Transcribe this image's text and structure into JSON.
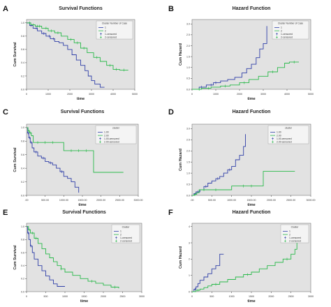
{
  "colors": {
    "series1": "#2f3fa8",
    "series2": "#29b94a",
    "plot_bg": "#e2e2e2",
    "axis": "#333333"
  },
  "chart_data": [
    {
      "panel": "A",
      "type": "line",
      "step": true,
      "title": "Survival Functions",
      "xlabel": "time",
      "ylabel": "Cum Survival",
      "xlim": [
        0,
        5000
      ],
      "ylim": [
        0,
        1.05
      ],
      "xticks": [
        0,
        1000,
        2000,
        3000,
        4000,
        5000
      ],
      "yticks": [
        0.0,
        0.2,
        0.4,
        0.6,
        0.8,
        1.0
      ],
      "xtick_labels": [
        "0",
        "1000",
        "2000",
        "3000",
        "4000",
        "5000"
      ],
      "ytick_labels": [
        "0.0",
        "0.2",
        "0.4",
        "0.6",
        "0.8",
        "1.0"
      ],
      "legend_title": "Cluster Number of Case",
      "legend": [
        "1",
        "2",
        "1-censored",
        "2-censored"
      ],
      "legend_position": "top-right",
      "series": [
        {
          "name": "1",
          "color": "#2f3fa8",
          "x": [
            0,
            150,
            300,
            500,
            700,
            900,
            1100,
            1300,
            1500,
            1700,
            1900,
            2100,
            2300,
            2500,
            2700,
            2850,
            3000,
            3150,
            3300,
            3400,
            3600
          ],
          "y": [
            1.0,
            0.96,
            0.92,
            0.88,
            0.84,
            0.8,
            0.76,
            0.72,
            0.7,
            0.66,
            0.6,
            0.52,
            0.44,
            0.36,
            0.28,
            0.2,
            0.13,
            0.08,
            0.08,
            0.03,
            0.03
          ],
          "censor_x": [
            200,
            450,
            800,
            1050,
            1250
          ]
        },
        {
          "name": "2",
          "color": "#29b94a",
          "x": [
            0,
            200,
            400,
            700,
            1000,
            1300,
            1600,
            1900,
            2200,
            2500,
            2800,
            3100,
            3400,
            3700,
            4000,
            4300,
            4700
          ],
          "y": [
            1.0,
            0.97,
            0.95,
            0.92,
            0.88,
            0.85,
            0.8,
            0.75,
            0.7,
            0.62,
            0.55,
            0.48,
            0.42,
            0.36,
            0.3,
            0.29,
            0.29
          ],
          "censor_x": [
            150,
            300,
            500,
            600,
            900,
            1150,
            1450,
            2050,
            2350,
            2650,
            3250,
            3850,
            4150,
            4500
          ]
        }
      ]
    },
    {
      "panel": "B",
      "type": "line",
      "step": true,
      "title": "Hazard Function",
      "xlabel": "time",
      "ylabel": "Cum Hazard",
      "xlim": [
        0,
        5000
      ],
      "ylim": [
        0,
        3.2
      ],
      "xticks": [
        0,
        1000,
        2000,
        3000,
        4000,
        5000
      ],
      "yticks": [
        0.0,
        0.5,
        1.0,
        1.5,
        2.0,
        2.5,
        3.0
      ],
      "xtick_labels": [
        "0",
        "1000",
        "2000",
        "3000",
        "4000",
        "5000"
      ],
      "ytick_labels": [
        "0.0",
        "0.5",
        "1.0",
        "1.5",
        "2.0",
        "2.5",
        "3.0"
      ],
      "legend_title": "Cluster Number of Case",
      "legend": [
        "1",
        "2",
        "1-censored",
        "2-censored"
      ],
      "legend_position": "top-right",
      "series": [
        {
          "name": "1",
          "color": "#2f3fa8",
          "x": [
            0,
            300,
            600,
            900,
            1200,
            1500,
            1800,
            2100,
            2300,
            2500,
            2700,
            2850,
            3000,
            3150
          ],
          "y": [
            0.0,
            0.1,
            0.2,
            0.3,
            0.38,
            0.45,
            0.55,
            0.75,
            0.95,
            1.15,
            1.45,
            1.85,
            2.1,
            2.9
          ],
          "censor_x": [
            400,
            800,
            1000
          ]
        },
        {
          "name": "2",
          "color": "#29b94a",
          "x": [
            0,
            400,
            800,
            1200,
            1600,
            2000,
            2400,
            2800,
            3200,
            3600,
            3900,
            4100,
            4500
          ],
          "y": [
            0.0,
            0.05,
            0.1,
            0.15,
            0.2,
            0.3,
            0.45,
            0.6,
            0.8,
            1.0,
            1.2,
            1.25,
            1.25
          ],
          "censor_x": [
            300,
            700,
            1400,
            2200,
            3400,
            4300
          ]
        }
      ]
    },
    {
      "panel": "C",
      "type": "line",
      "step": true,
      "title": "Survival Functions",
      "xlabel": "time",
      "ylabel": "Cum Survival",
      "xlim": [
        0,
        3000
      ],
      "ylim": [
        0,
        1.05
      ],
      "xticks": [
        0,
        500,
        1000,
        1500,
        2000,
        2500,
        3000
      ],
      "yticks": [
        0.0,
        0.2,
        0.4,
        0.6,
        0.8,
        1.0
      ],
      "xtick_labels": [
        ".00",
        "500.00",
        "1000.00",
        "1500.00",
        "2000.00",
        "2500.00",
        "3000.00"
      ],
      "ytick_labels": [
        "0.0",
        "0.2",
        "0.4",
        "0.6",
        "0.8",
        "1.0"
      ],
      "legend_title": "cluster",
      "legend": [
        "1.00",
        "2.00",
        "1.00-censored",
        "2.00-censored"
      ],
      "legend_position": "top-right",
      "series": [
        {
          "name": "1.00",
          "color": "#2f3fa8",
          "x": [
            0,
            30,
            60,
            100,
            150,
            200,
            300,
            400,
            500,
            600,
            700,
            800,
            900,
            1000,
            1100,
            1200,
            1300,
            1400
          ],
          "y": [
            1.0,
            0.92,
            0.85,
            0.78,
            0.7,
            0.64,
            0.58,
            0.55,
            0.5,
            0.48,
            0.45,
            0.4,
            0.35,
            0.28,
            0.25,
            0.2,
            0.12,
            0.04
          ],
          "censor_x": [
            40,
            80,
            120,
            250,
            450,
            650,
            950
          ]
        },
        {
          "name": "2.00",
          "color": "#29b94a",
          "x": [
            0,
            40,
            80,
            130,
            180,
            1000,
            1800,
            2600
          ],
          "y": [
            1.0,
            0.95,
            0.92,
            0.88,
            0.78,
            0.66,
            0.34,
            0.34
          ],
          "censor_x": [
            60,
            110,
            300,
            500,
            700,
            1200,
            1400,
            1600
          ]
        }
      ]
    },
    {
      "panel": "D",
      "type": "line",
      "step": true,
      "title": "Hazard Function",
      "xlabel": "time",
      "ylabel": "Cum Hazard",
      "xlim": [
        0,
        3000
      ],
      "ylim": [
        0,
        3.2
      ],
      "xticks": [
        0,
        500,
        1000,
        1500,
        2000,
        2500,
        3000
      ],
      "yticks": [
        0.0,
        0.5,
        1.0,
        1.5,
        2.0,
        2.5,
        3.0
      ],
      "xtick_labels": [
        ".00",
        "500.00",
        "1000.00",
        "1500.00",
        "2000.00",
        "2500.00",
        "3000.00"
      ],
      "ytick_labels": [
        "0.0",
        "0.5",
        "1.0",
        "1.5",
        "2.0",
        "2.5",
        "3.0"
      ],
      "legend_title": "cluster",
      "legend": [
        "1.00",
        "2.00",
        "1.00-censored",
        "2.00-censored"
      ],
      "legend_position": "top-right",
      "series": [
        {
          "name": "1.00",
          "color": "#2f3fa8",
          "x": [
            0,
            50,
            100,
            200,
            300,
            400,
            500,
            600,
            700,
            800,
            900,
            1000,
            1100,
            1200,
            1300,
            1350
          ],
          "y": [
            0.0,
            0.08,
            0.16,
            0.25,
            0.4,
            0.55,
            0.65,
            0.75,
            0.85,
            1.0,
            1.15,
            1.3,
            1.6,
            1.8,
            2.2,
            2.75
          ],
          "censor_x": [
            150,
            350,
            650,
            950
          ]
        },
        {
          "name": "2.00",
          "color": "#29b94a",
          "x": [
            0,
            60,
            120,
            180,
            1000,
            1800,
            2600
          ],
          "y": [
            0.0,
            0.05,
            0.12,
            0.25,
            0.42,
            1.08,
            1.08
          ],
          "censor_x": [
            80,
            300,
            600,
            1300,
            1500
          ]
        }
      ]
    },
    {
      "panel": "E",
      "type": "line",
      "step": true,
      "title": "Survival Functions",
      "xlabel": "time",
      "ylabel": "Cum Survival",
      "xlim": [
        0,
        3000
      ],
      "ylim": [
        0,
        1.05
      ],
      "xticks": [
        0,
        500,
        1000,
        1500,
        2000,
        2500,
        3000
      ],
      "yticks": [
        0.0,
        0.2,
        0.4,
        0.6,
        0.8,
        1.0
      ],
      "xtick_labels": [
        "0",
        "500",
        "1000",
        "1500",
        "2000",
        "2500",
        "3000"
      ],
      "ytick_labels": [
        "0.0",
        "0.2",
        "0.4",
        "0.6",
        "0.8",
        "1.0"
      ],
      "legend_title": "Cluster",
      "legend": [
        "1",
        "2",
        "1-censored",
        "2-censored"
      ],
      "legend_position": "top-right",
      "series": [
        {
          "name": "1",
          "color": "#2f3fa8",
          "x": [
            0,
            30,
            60,
            100,
            150,
            200,
            300,
            400,
            500,
            600,
            700,
            800,
            1000
          ],
          "y": [
            1.0,
            0.9,
            0.8,
            0.7,
            0.6,
            0.5,
            0.4,
            0.32,
            0.24,
            0.18,
            0.12,
            0.08,
            0.08
          ],
          "censor_x": [
            50,
            120
          ]
        },
        {
          "name": "2",
          "color": "#29b94a",
          "x": [
            0,
            50,
            100,
            200,
            300,
            400,
            500,
            600,
            700,
            800,
            900,
            1000,
            1200,
            1400,
            1600,
            1800,
            2000,
            2200,
            2400
          ],
          "y": [
            1.0,
            0.95,
            0.9,
            0.82,
            0.74,
            0.66,
            0.58,
            0.52,
            0.46,
            0.4,
            0.35,
            0.3,
            0.25,
            0.2,
            0.16,
            0.13,
            0.1,
            0.07,
            0.05
          ],
          "censor_x": [
            70,
            150,
            250,
            900,
            1700,
            2300
          ]
        }
      ]
    },
    {
      "panel": "F",
      "type": "line",
      "step": true,
      "title": "Hazard Function",
      "xlabel": "time",
      "ylabel": "Cum Hazard",
      "xlim": [
        0,
        3000
      ],
      "ylim": [
        0,
        4.2
      ],
      "xticks": [
        0,
        500,
        1000,
        1500,
        2000,
        2500,
        3000
      ],
      "yticks": [
        0,
        1,
        2,
        3,
        4
      ],
      "xtick_labels": [
        "0",
        "500",
        "1000",
        "1500",
        "2000",
        "2500",
        "3000"
      ],
      "ytick_labels": [
        "0",
        "1",
        "2",
        "3",
        "4"
      ],
      "legend_title": "Cluster",
      "legend": [
        "1",
        "2",
        "1-censored",
        "2-censored"
      ],
      "legend_position": "top-right",
      "series": [
        {
          "name": "1",
          "color": "#2f3fa8",
          "x": [
            0,
            50,
            100,
            150,
            200,
            300,
            400,
            500,
            600,
            700,
            800
          ],
          "y": [
            0.0,
            0.15,
            0.3,
            0.5,
            0.7,
            0.9,
            1.1,
            1.4,
            1.6,
            2.3,
            2.3
          ],
          "censor_x": [
            80
          ]
        },
        {
          "name": "2",
          "color": "#29b94a",
          "x": [
            0,
            100,
            200,
            300,
            400,
            500,
            700,
            900,
            1100,
            1300,
            1500,
            1700,
            1900,
            2100,
            2300,
            2500,
            2600,
            2650
          ],
          "y": [
            0.0,
            0.08,
            0.16,
            0.25,
            0.35,
            0.45,
            0.6,
            0.75,
            0.9,
            1.05,
            1.2,
            1.4,
            1.6,
            1.8,
            2.0,
            2.3,
            2.6,
            3.4
          ],
          "censor_x": [
            150,
            600,
            1400,
            2400
          ]
        }
      ]
    }
  ]
}
